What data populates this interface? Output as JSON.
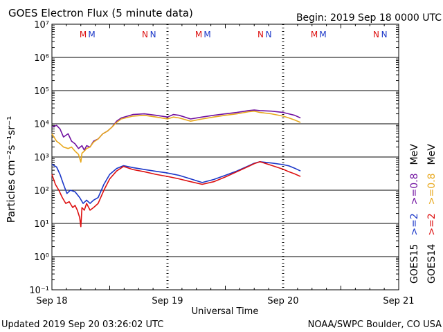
{
  "chart_data": {
    "type": "line",
    "title": "GOES Electron Flux (5 minute data)",
    "begin_label": "Begin: 2019 Sep 18 0000 UTC",
    "xlabel": "Universal Time",
    "ylabel": "Particles cm⁻²s⁻¹sr⁻¹",
    "y_scale": "log",
    "ylim_exponent": [
      -1,
      7
    ],
    "y_tick_labels": [
      "10⁻¹",
      "10⁰",
      "10¹",
      "10²",
      "10³",
      "10⁴",
      "10⁵",
      "10⁶",
      "10⁷"
    ],
    "x_unit": "days since 2019 Sep 18 00:00 UTC",
    "xlim": [
      0,
      3
    ],
    "x_tick_labels": [
      "Sep 18",
      "Sep 19",
      "Sep 20",
      "Sep 21"
    ],
    "threshold": 1000,
    "markers": [
      {
        "label": "M",
        "x": 0.27,
        "color": "#dd1010"
      },
      {
        "label": "M",
        "x": 0.345,
        "color": "#1a36c8"
      },
      {
        "label": "N",
        "x": 0.805,
        "color": "#dd1010"
      },
      {
        "label": "N",
        "x": 0.875,
        "color": "#1a36c8"
      },
      {
        "label": "M",
        "x": 1.27,
        "color": "#dd1010"
      },
      {
        "label": "M",
        "x": 1.345,
        "color": "#1a36c8"
      },
      {
        "label": "N",
        "x": 1.805,
        "color": "#dd1010"
      },
      {
        "label": "N",
        "x": 1.875,
        "color": "#1a36c8"
      },
      {
        "label": "M",
        "x": 2.27,
        "color": "#dd1010"
      },
      {
        "label": "M",
        "x": 2.345,
        "color": "#1a36c8"
      },
      {
        "label": "N",
        "x": 2.805,
        "color": "#dd1010"
      },
      {
        "label": "N",
        "x": 2.875,
        "color": "#1a36c8"
      }
    ],
    "series": [
      {
        "name": "GOES15 >=0.8 MeV",
        "color": "#7010a0",
        "x": [
          0,
          0.04,
          0.07,
          0.1,
          0.14,
          0.17,
          0.2,
          0.23,
          0.26,
          0.28,
          0.3,
          0.33,
          0.36,
          0.4,
          0.44,
          0.48,
          0.52,
          0.56,
          0.6,
          0.7,
          0.8,
          0.9,
          1.0,
          1.05,
          1.1,
          1.2,
          1.3,
          1.4,
          1.5,
          1.6,
          1.7,
          1.75,
          1.8,
          1.9,
          2.0,
          2.05,
          2.1,
          2.15
        ],
        "values": [
          8000,
          9000,
          7000,
          4000,
          5000,
          3000,
          2500,
          1800,
          2200,
          1600,
          2200,
          2000,
          3000,
          3500,
          5000,
          6000,
          8000,
          12000,
          15000,
          19000,
          20000,
          18000,
          16000,
          19000,
          18000,
          14000,
          16000,
          18000,
          20000,
          22000,
          25000,
          26000,
          25000,
          24000,
          22000,
          20000,
          18000,
          15000
        ]
      },
      {
        "name": "GOES14 >=0.8 MeV",
        "color": "#e8a81c",
        "x": [
          0,
          0.04,
          0.07,
          0.1,
          0.14,
          0.17,
          0.2,
          0.23,
          0.25,
          0.26,
          0.28,
          0.3,
          0.33,
          0.36,
          0.4,
          0.44,
          0.48,
          0.52,
          0.56,
          0.6,
          0.7,
          0.8,
          0.9,
          1.0,
          1.05,
          1.1,
          1.2,
          1.3,
          1.4,
          1.5,
          1.6,
          1.7,
          1.75,
          1.8,
          1.9,
          2.0,
          2.05,
          2.1,
          2.15
        ],
        "values": [
          5000,
          3000,
          2500,
          2000,
          1800,
          2000,
          1500,
          1200,
          700,
          1300,
          1500,
          1800,
          2000,
          2800,
          3500,
          5000,
          6000,
          8000,
          11000,
          14000,
          17000,
          18000,
          16000,
          14000,
          16000,
          15000,
          12000,
          14000,
          16000,
          18000,
          20000,
          23000,
          24000,
          22000,
          20000,
          17000,
          15000,
          13000,
          11000
        ]
      },
      {
        "name": "GOES15 >=2 MeV",
        "color": "#1a36c8",
        "x": [
          0,
          0.04,
          0.07,
          0.1,
          0.13,
          0.16,
          0.2,
          0.24,
          0.27,
          0.3,
          0.33,
          0.36,
          0.4,
          0.45,
          0.5,
          0.56,
          0.62,
          0.7,
          0.8,
          0.9,
          1.0,
          1.1,
          1.2,
          1.3,
          1.4,
          1.5,
          1.6,
          1.7,
          1.75,
          1.8,
          1.9,
          2.0,
          2.05,
          2.1,
          2.15
        ],
        "values": [
          600,
          500,
          300,
          150,
          80,
          100,
          90,
          60,
          40,
          50,
          40,
          50,
          60,
          150,
          300,
          450,
          550,
          480,
          420,
          370,
          330,
          280,
          220,
          170,
          210,
          280,
          380,
          540,
          650,
          720,
          660,
          590,
          540,
          460,
          380
        ]
      },
      {
        "name": "GOES14 >=2 MeV",
        "color": "#dd1010",
        "x": [
          0,
          0.03,
          0.06,
          0.09,
          0.12,
          0.15,
          0.18,
          0.2,
          0.22,
          0.24,
          0.25,
          0.26,
          0.28,
          0.3,
          0.33,
          0.36,
          0.4,
          0.45,
          0.5,
          0.56,
          0.62,
          0.7,
          0.8,
          0.9,
          1.0,
          1.1,
          1.2,
          1.3,
          1.4,
          1.5,
          1.6,
          1.7,
          1.75,
          1.8,
          1.9,
          2.0,
          2.05,
          2.1,
          2.15
        ],
        "values": [
          300,
          150,
          100,
          60,
          40,
          45,
          30,
          35,
          25,
          15,
          8,
          30,
          25,
          40,
          25,
          30,
          40,
          100,
          220,
          380,
          520,
          420,
          360,
          300,
          260,
          220,
          180,
          150,
          180,
          250,
          360,
          520,
          630,
          720,
          560,
          430,
          360,
          310,
          260
        ]
      }
    ],
    "legend": {
      "placement": "right",
      "columns": [
        {
          "satellite": "GOES15",
          "low_label": ">=2",
          "high_label": ">=0.8",
          "unit": "MeV",
          "low_color": "#1a36c8",
          "high_color": "#7010a0"
        },
        {
          "satellite": "GOES14",
          "low_label": ">=2",
          "high_label": ">=0.8",
          "unit": "MeV",
          "low_color": "#dd1010",
          "high_color": "#e8a81c"
        }
      ]
    }
  },
  "footer": {
    "updated": "Updated 2019 Sep 20 03:26:02 UTC",
    "credit": "NOAA/SWPC Boulder, CO USA"
  }
}
